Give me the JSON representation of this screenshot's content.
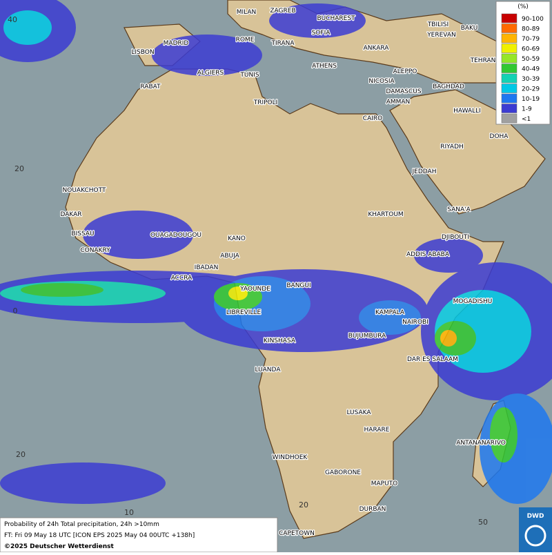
{
  "legend": {
    "title": "(%)",
    "items": [
      {
        "label": "90-100",
        "color": "#c80000"
      },
      {
        "label": "80-89",
        "color": "#ff6a00"
      },
      {
        "label": "70-79",
        "color": "#ffb400"
      },
      {
        "label": "60-69",
        "color": "#f0f000"
      },
      {
        "label": "50-59",
        "color": "#96e628"
      },
      {
        "label": "40-49",
        "color": "#32c832"
      },
      {
        "label": "30-39",
        "color": "#14d2b4"
      },
      {
        "label": "20-29",
        "color": "#00c8e6"
      },
      {
        "label": "10-19",
        "color": "#1e78f0"
      },
      {
        "label": "1-9",
        "color": "#3c3cd2"
      },
      {
        "label": "<1",
        "color": "#a0a0a0"
      }
    ]
  },
  "grid_labels": [
    "40",
    "20",
    "0",
    "20",
    "10",
    "20",
    "50"
  ],
  "cities": [
    "MILAN",
    "ZAGREB",
    "BUCHAREST",
    "TBILISI",
    "BAKU",
    "MADRID",
    "ROME",
    "SOFIA",
    "YEREVAN",
    "LISBON",
    "TIRANA",
    "ANKARA",
    "TEHRAN",
    "ALGIERS",
    "TUNIS",
    "ATHENS",
    "ALEPPO",
    "RABAT",
    "NICOSIA",
    "BAGHDAD",
    "DAMASCUS",
    "AMMAN",
    "TRIPOLI",
    "HAWALLI",
    "CAIRO",
    "DOHA",
    "RIYADH",
    "JEDDAH",
    "NOUAKCHOTT",
    "DAKAR",
    "KHARTOUM",
    "SANA'A",
    "BISSAU",
    "OUAGADOUGOU",
    "KANO",
    "DJIBOUTI",
    "CONAKRY",
    "ABUJA",
    "ADDIS ABABA",
    "IBADAN",
    "ACCRA",
    "YAOUNDE",
    "BANGUI",
    "MOGADISHU",
    "LIBREVILLE",
    "KAMPALA",
    "NAIROBI",
    "KINSHASA",
    "BUJUMBURA",
    "DAR ES SALAAM",
    "LUANDA",
    "LUSAKA",
    "HARARE",
    "ANTANANARIVO",
    "WINDHOEK",
    "GABORONE",
    "MAPUTO",
    "DURBAN",
    "CAPETOWN"
  ],
  "footer": {
    "line1": "Probability of 24h Total precipitation, 24h >10mm",
    "line2": "FT: Fri 09 May 18 UTC [ICON EPS 2025 May 04 00UTC +138h]",
    "line3": "©2025 Deutscher Wetterdienst"
  },
  "logo": "DWD"
}
